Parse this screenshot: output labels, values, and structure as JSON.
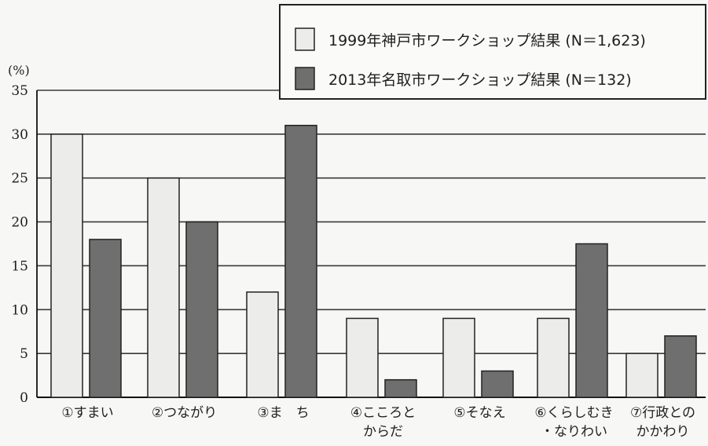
{
  "chart_data": {
    "type": "bar",
    "ylabel": "(%)",
    "ylim": [
      0,
      35
    ],
    "yticks": [
      0,
      5,
      10,
      15,
      20,
      25,
      30,
      35
    ],
    "grid": true,
    "legend_position": "top-right",
    "categories": [
      [
        "①すまい"
      ],
      [
        "②つながり"
      ],
      [
        "③ま　ち"
      ],
      [
        "④こころと",
        "からだ"
      ],
      [
        "⑤そなえ"
      ],
      [
        "⑥くらしむき",
        "・なりわい"
      ],
      [
        "⑦行政との",
        "かかわり"
      ]
    ],
    "series": [
      {
        "name": "1999年神戸市ワークショップ結果 (N＝1,623)",
        "color": "#ececea",
        "values": [
          30,
          25,
          12,
          9,
          9,
          9,
          5
        ]
      },
      {
        "name": "2013年名取市ワークショップ結果 (N＝132)",
        "color": "#6f6f6f",
        "values": [
          18,
          20,
          31,
          2,
          3,
          17.5,
          7
        ]
      }
    ]
  }
}
